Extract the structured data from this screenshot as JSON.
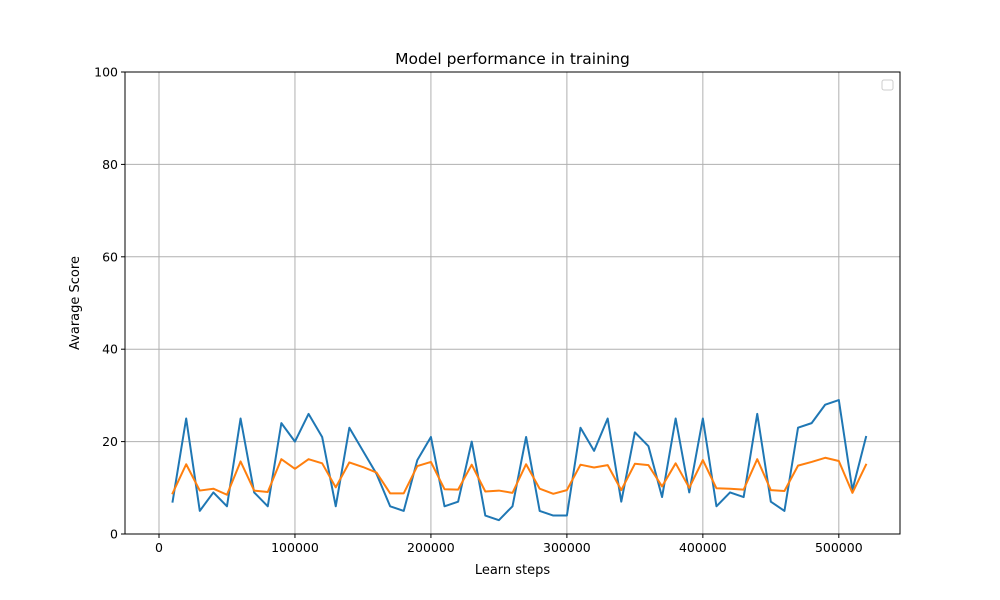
{
  "chart_data": {
    "type": "line",
    "title": "Model performance in training",
    "xlabel": "Learn steps",
    "ylabel": "Avarage Score",
    "xlim": [
      -25000,
      545000
    ],
    "ylim": [
      0,
      100
    ],
    "xticks": [
      0,
      100000,
      200000,
      300000,
      400000,
      500000
    ],
    "xtick_labels": [
      "0",
      "100000",
      "200000",
      "300000",
      "400000",
      "500000"
    ],
    "yticks": [
      0,
      20,
      40,
      60,
      80,
      100
    ],
    "ytick_labels": [
      "0",
      "20",
      "40",
      "60",
      "80",
      "100"
    ],
    "grid": true,
    "legend": "top-right, empty",
    "x": [
      10000,
      20000,
      30000,
      40000,
      50000,
      60000,
      70000,
      80000,
      90000,
      100000,
      110000,
      120000,
      130000,
      140000,
      150000,
      160000,
      170000,
      180000,
      190000,
      200000,
      210000,
      220000,
      230000,
      240000,
      250000,
      260000,
      270000,
      280000,
      290000,
      300000,
      310000,
      320000,
      330000,
      340000,
      350000,
      360000,
      370000,
      380000,
      390000,
      400000,
      410000,
      420000,
      430000,
      440000,
      450000,
      460000,
      470000,
      480000,
      490000,
      500000,
      510000,
      520000
    ],
    "series": [
      {
        "color": "#1f77b4",
        "values": [
          7,
          25,
          5,
          9,
          6,
          25,
          9,
          6,
          24,
          20,
          26,
          21,
          6,
          23,
          18,
          13,
          6,
          5,
          16,
          21,
          6,
          7,
          20,
          4,
          3,
          6,
          21,
          5,
          4,
          4,
          23,
          18,
          25,
          7,
          22,
          19,
          8,
          25,
          9,
          25,
          6,
          9,
          8,
          26,
          7,
          5,
          23,
          24,
          28,
          29,
          9.5,
          21
        ]
      },
      {
        "color": "#ff7f0e",
        "values": [
          8.8,
          15.1,
          9.4,
          9.8,
          8.5,
          15.7,
          9.4,
          9.1,
          16.2,
          14.1,
          16.2,
          15.3,
          10.1,
          15.5,
          14.5,
          13.3,
          8.8,
          8.8,
          14.7,
          15.6,
          9.7,
          9.6,
          15,
          9.2,
          9.4,
          8.9,
          15.1,
          9.8,
          8.7,
          9.5,
          15,
          14.4,
          14.9,
          9.5,
          15.2,
          14.9,
          10.3,
          15.3,
          10,
          16,
          9.9,
          9.8,
          9.6,
          16.2,
          9.5,
          9.3,
          14.8,
          15.6,
          16.5,
          15.8,
          8.9,
          15
        ]
      }
    ]
  }
}
